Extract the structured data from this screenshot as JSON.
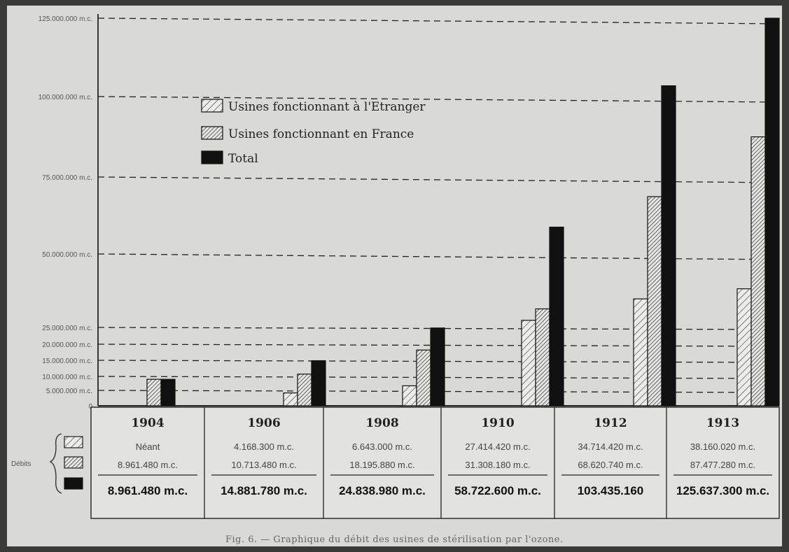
{
  "chart_data": {
    "type": "bar",
    "categories": [
      "1904",
      "1906",
      "1908",
      "1910",
      "1912",
      "1913"
    ],
    "series": [
      {
        "name": "Usines fonctionnant à l'Etranger",
        "pattern": "hatch-light",
        "values": [
          0,
          4168300,
          6643000,
          27414420,
          34714420,
          38160020
        ]
      },
      {
        "name": "Usines fonctionnant en France",
        "pattern": "hatch-dense",
        "values": [
          8961480,
          10713480,
          18195880,
          31308180,
          68620740,
          87477280
        ]
      },
      {
        "name": "Total",
        "pattern": "solid",
        "values": [
          8961480,
          14881780,
          24838980,
          58722600,
          103435160,
          125637300
        ]
      }
    ],
    "ylim": [
      0,
      125000000
    ],
    "yticks": [
      {
        "value": 125000000,
        "label": "125.000.000 m.c."
      },
      {
        "value": 100000000,
        "label": "100.000.000 m.c."
      },
      {
        "value": 75000000,
        "label": "75.000.000 m.c."
      },
      {
        "value": 50000000,
        "label": "50.000.000 m.c."
      },
      {
        "value": 25000000,
        "label": "25.000.000 m.c."
      },
      {
        "value": 20000000,
        "label": "20.000.000 m.c."
      },
      {
        "value": 15000000,
        "label": "15.000.000 m.c."
      },
      {
        "value": 10000000,
        "label": "10.000.000 m.c."
      },
      {
        "value": 5000000,
        "label": "5.000.000 m.c."
      },
      {
        "value": 0,
        "label": "0"
      }
    ],
    "grid": "dashed",
    "legend_position": "top-left",
    "table": {
      "row_label": "Débits",
      "columns": [
        {
          "year": "1904",
          "etranger": "Néant",
          "france": "8.961.480 m.c.",
          "total": "8.961.480 m.c."
        },
        {
          "year": "1906",
          "etranger": "4.168.300 m.c.",
          "france": "10.713.480 m.c.",
          "total": "14.881.780 m.c."
        },
        {
          "year": "1908",
          "etranger": "6.643.000 m.c.",
          "france": "18.195.880 m.c.",
          "total": "24.838.980 m.c."
        },
        {
          "year": "1910",
          "etranger": "27.414.420 m.c.",
          "france": "31.308.180 m.c.",
          "total": "58.722.600 m.c."
        },
        {
          "year": "1912",
          "etranger": "34.714.420 m.c.",
          "france": "68.620.740 m.c.",
          "total": "103.435.160"
        },
        {
          "year": "1913",
          "etranger": "38.160.020 m.c.",
          "france": "87.477.280 m.c.",
          "total": "125.637.300 m.c."
        }
      ]
    },
    "caption": "Fig. 6. — Graphique du débit des usines de stérilisation par l'ozone."
  },
  "colors": {
    "paper": "#d9d9d5",
    "ink": "#111111",
    "grid": "#222222",
    "hatch": "#333333"
  }
}
